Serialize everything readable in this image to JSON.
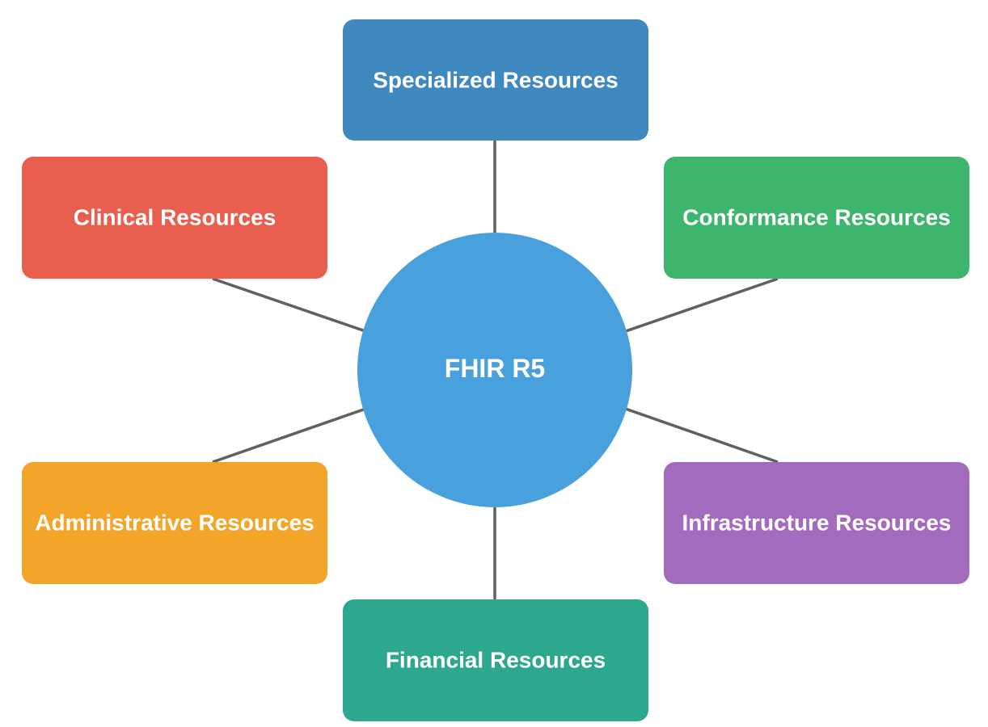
{
  "hub": {
    "label": "FHIR R5",
    "color": "#48a0dc"
  },
  "connector_color": "#606060",
  "nodes": [
    {
      "id": "specialized",
      "label": "Specialized Resources",
      "color": "#3f88c0"
    },
    {
      "id": "clinical",
      "label": "Clinical Resources",
      "color": "#e95f4f"
    },
    {
      "id": "conformance",
      "label": "Conformance Resources",
      "color": "#3eb56c"
    },
    {
      "id": "administrative",
      "label": "Administrative Resources",
      "color": "#f3a52a"
    },
    {
      "id": "infrastructure",
      "label": "Infrastructure Resources",
      "color": "#a36bbd"
    },
    {
      "id": "financial",
      "label": "Financial Resources",
      "color": "#2ea78f"
    }
  ]
}
